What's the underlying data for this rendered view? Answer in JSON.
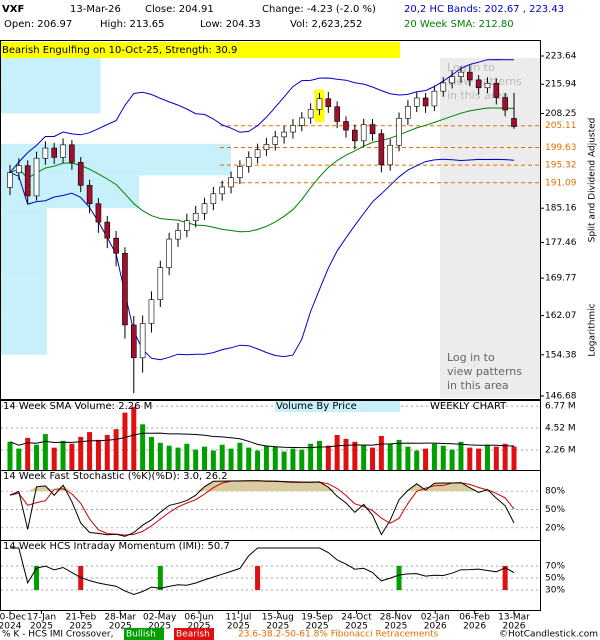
{
  "header": {
    "symbol": "VXF",
    "date": "13-Mar-26",
    "close": "Close: 204.91",
    "change": "Change: -4.23 (-2.0 %)",
    "open": "Open: 206.97",
    "high": "High: 213.65",
    "low": "Low: 204.33",
    "volume": "Vol: 2,623,252",
    "bands": "20,2 HC Bands: 202.67 , 223.43",
    "sma": "20 Week SMA: 212.80",
    "pattern": "Bearish Engulfing on 10-Oct-25, Strength: 30.9",
    "login": [
      "Log in to",
      "view patterns",
      "in this area"
    ],
    "side_top": "Split and Dividend Adjusted",
    "side_bottom": "Logarithmic"
  },
  "chart_data": [
    {
      "type": "candlestick",
      "log_scale": true,
      "up_color": "#ffffff",
      "down_color": "#a0102c",
      "band_color": "#0000cc",
      "sma_color": "#008000",
      "open": [
        190.0,
        193.5,
        195.2,
        188.0,
        197.0,
        199.5,
        197.2,
        200.3,
        196.0,
        190.5,
        186.2,
        182.0,
        178.4,
        175.1,
        160.2,
        153.8,
        160.5,
        165.3,
        172.0,
        178.2,
        180.1,
        182.3,
        184.0,
        186.2,
        188.5,
        190.1,
        192.3,
        195.0,
        197.2,
        199.1,
        200.4,
        202.3,
        203.5,
        205.2,
        207.1,
        209.3,
        212.1,
        210.0,
        206.2,
        204.0,
        201.3,
        205.4,
        203.1,
        195.4,
        200.2,
        207.0,
        210.1,
        212.3,
        210.2,
        214.1,
        216.3,
        218.0,
        219.2,
        217.1,
        215.0,
        216.2,
        212.4,
        206.97
      ],
      "high": [
        195.4,
        197.0,
        196.5,
        198.6,
        201.2,
        200.8,
        201.9,
        201.5,
        197.3,
        191.8,
        187.5,
        183.4,
        180.0,
        176.4,
        162.0,
        162.1,
        167.0,
        173.5,
        179.6,
        181.8,
        183.9,
        185.7,
        187.6,
        190.1,
        191.6,
        193.8,
        196.5,
        198.7,
        200.6,
        202.0,
        203.8,
        205.1,
        206.8,
        208.6,
        210.9,
        213.6,
        213.9,
        211.4,
        207.5,
        205.4,
        206.9,
        206.8,
        204.2,
        201.8,
        208.5,
        211.7,
        213.8,
        213.6,
        215.6,
        217.9,
        219.7,
        220.8,
        221.0,
        218.4,
        217.8,
        217.5,
        213.6,
        213.65
      ],
      "low": [
        188.2,
        191.8,
        186.1,
        186.9,
        195.4,
        195.6,
        195.8,
        194.2,
        188.9,
        184.0,
        179.6,
        176.2,
        172.3,
        157.5,
        147.2,
        151.0,
        158.7,
        163.8,
        170.4,
        176.5,
        178.6,
        180.8,
        182.5,
        184.7,
        186.9,
        188.6,
        190.8,
        193.5,
        195.7,
        197.6,
        198.9,
        200.6,
        201.9,
        203.7,
        205.6,
        207.8,
        208.4,
        204.5,
        202.1,
        199.2,
        199.8,
        201.3,
        193.6,
        194.0,
        198.7,
        205.3,
        208.6,
        208.4,
        208.9,
        212.6,
        214.8,
        216.3,
        215.4,
        213.2,
        213.6,
        210.6,
        207.5,
        204.33
      ],
      "close": [
        193.5,
        195.2,
        188.0,
        197.0,
        199.5,
        197.2,
        200.3,
        196.0,
        190.5,
        186.2,
        182.0,
        178.4,
        175.1,
        160.2,
        153.8,
        160.5,
        165.3,
        172.0,
        178.2,
        180.1,
        182.3,
        184.0,
        186.2,
        188.5,
        190.1,
        192.3,
        195.0,
        197.2,
        199.1,
        200.4,
        202.3,
        203.5,
        205.2,
        207.1,
        209.3,
        212.1,
        210.0,
        206.2,
        204.0,
        201.3,
        205.4,
        203.1,
        195.4,
        200.2,
        207.0,
        210.1,
        212.3,
        210.2,
        214.1,
        216.3,
        218.0,
        219.2,
        217.1,
        215.0,
        216.2,
        212.4,
        209.14,
        204.91
      ],
      "ylim": [
        146.68,
        223.64
      ],
      "yticks": [
        223.64,
        215.94,
        208.25,
        185.16,
        177.46,
        169.77,
        162.07,
        154.38,
        146.68
      ],
      "fibonacci": {
        "color": "#e07000",
        "levels": [
          205.11,
          199.63,
          195.32,
          191.09
        ]
      },
      "volume_by_price": {
        "color": "#c8f0fa",
        "bins": [
          146.68,
          154.38,
          162.07,
          169.77,
          177.46,
          185.16,
          192.85,
          200.56,
          208.25,
          215.94,
          223.64
        ],
        "values": [
          0,
          6,
          6,
          6,
          6,
          18,
          30,
          0,
          13,
          13
        ]
      },
      "xticks": [
        {
          "label": "20-Dec",
          "year": "2024"
        },
        {
          "label": "17-Jan",
          "year": "2025"
        },
        {
          "label": "21-Feb",
          "year": "2025"
        },
        {
          "label": "28-Mar",
          "year": "2025"
        },
        {
          "label": "02-May",
          "year": "2025"
        },
        {
          "label": "06-Jun",
          "year": "2025"
        },
        {
          "label": "11-Jul",
          "year": "2025"
        },
        {
          "label": "15-Aug",
          "year": "2025"
        },
        {
          "label": "19-Sep",
          "year": "2025"
        },
        {
          "label": "24-Oct",
          "year": "2025"
        },
        {
          "label": "28-Nov",
          "year": "2025"
        },
        {
          "label": "02-Jan",
          "year": "2026"
        },
        {
          "label": "06-Feb",
          "year": "2026"
        },
        {
          "label": "13-Mar",
          "year": "2026"
        }
      ]
    },
    {
      "type": "bar",
      "title": "14 Week SMA Volume: 2.26 M",
      "subtitle": "Volume By Price",
      "note": "WEEKLY CHART",
      "up_color": "#00a000",
      "down_color": "#e01010",
      "values": [
        3.1,
        2.4,
        3.5,
        2.8,
        3.9,
        2.5,
        3.2,
        2.9,
        3.6,
        4.1,
        3.3,
        3.8,
        4.4,
        6.1,
        6.7,
        4.9,
        3.6,
        3.0,
        2.7,
        2.5,
        2.9,
        2.3,
        2.6,
        2.2,
        2.8,
        2.4,
        3.0,
        2.5,
        2.2,
        2.7,
        2.6,
        2.1,
        2.4,
        2.3,
        2.9,
        3.2,
        2.7,
        3.8,
        3.4,
        3.1,
        2.8,
        2.5,
        3.7,
        2.9,
        3.3,
        2.6,
        2.2,
        2.4,
        2.9,
        2.7,
        2.3,
        3.1,
        2.5,
        2.4,
        2.8,
        2.6,
        2.9,
        2.62
      ],
      "ylim": [
        0.2,
        7.4
      ],
      "yticks": [
        {
          "value": 6.77,
          "label": "6.77 M"
        },
        {
          "value": 4.52,
          "label": "4.52 M"
        },
        {
          "value": 2.26,
          "label": "2.26 M"
        }
      ]
    },
    {
      "type": "stochastic",
      "title": "14 Week Fast Stochastic (%K)(%D): 3.0, 26.2",
      "k_color": "#000000",
      "d_color": "#cc0000",
      "fill_color": "#d8cca0",
      "ylim": [
        0,
        100
      ],
      "yticks": [
        {
          "value": 80,
          "label": "80%"
        },
        {
          "value": 50,
          "label": "50%"
        },
        {
          "value": 20,
          "label": "20%"
        }
      ]
    },
    {
      "type": "momentum",
      "title": "14 Week HCS Intraday Momentum (IMI): 50.7",
      "ylim": [
        0,
        100
      ],
      "yticks": [
        {
          "value": 70,
          "label": "70%"
        },
        {
          "value": 50,
          "label": "50%"
        },
        {
          "value": 30,
          "label": "30%"
        }
      ]
    }
  ],
  "footer": {
    "crossover": "% K - HCS IMI Crossover,",
    "bullish": "Bullish",
    "bearish": "Bearish",
    "fib": "23.6-38.2-50-61.8% Fibonacci Retracements",
    "credit": "©HotCandlestick.com"
  }
}
